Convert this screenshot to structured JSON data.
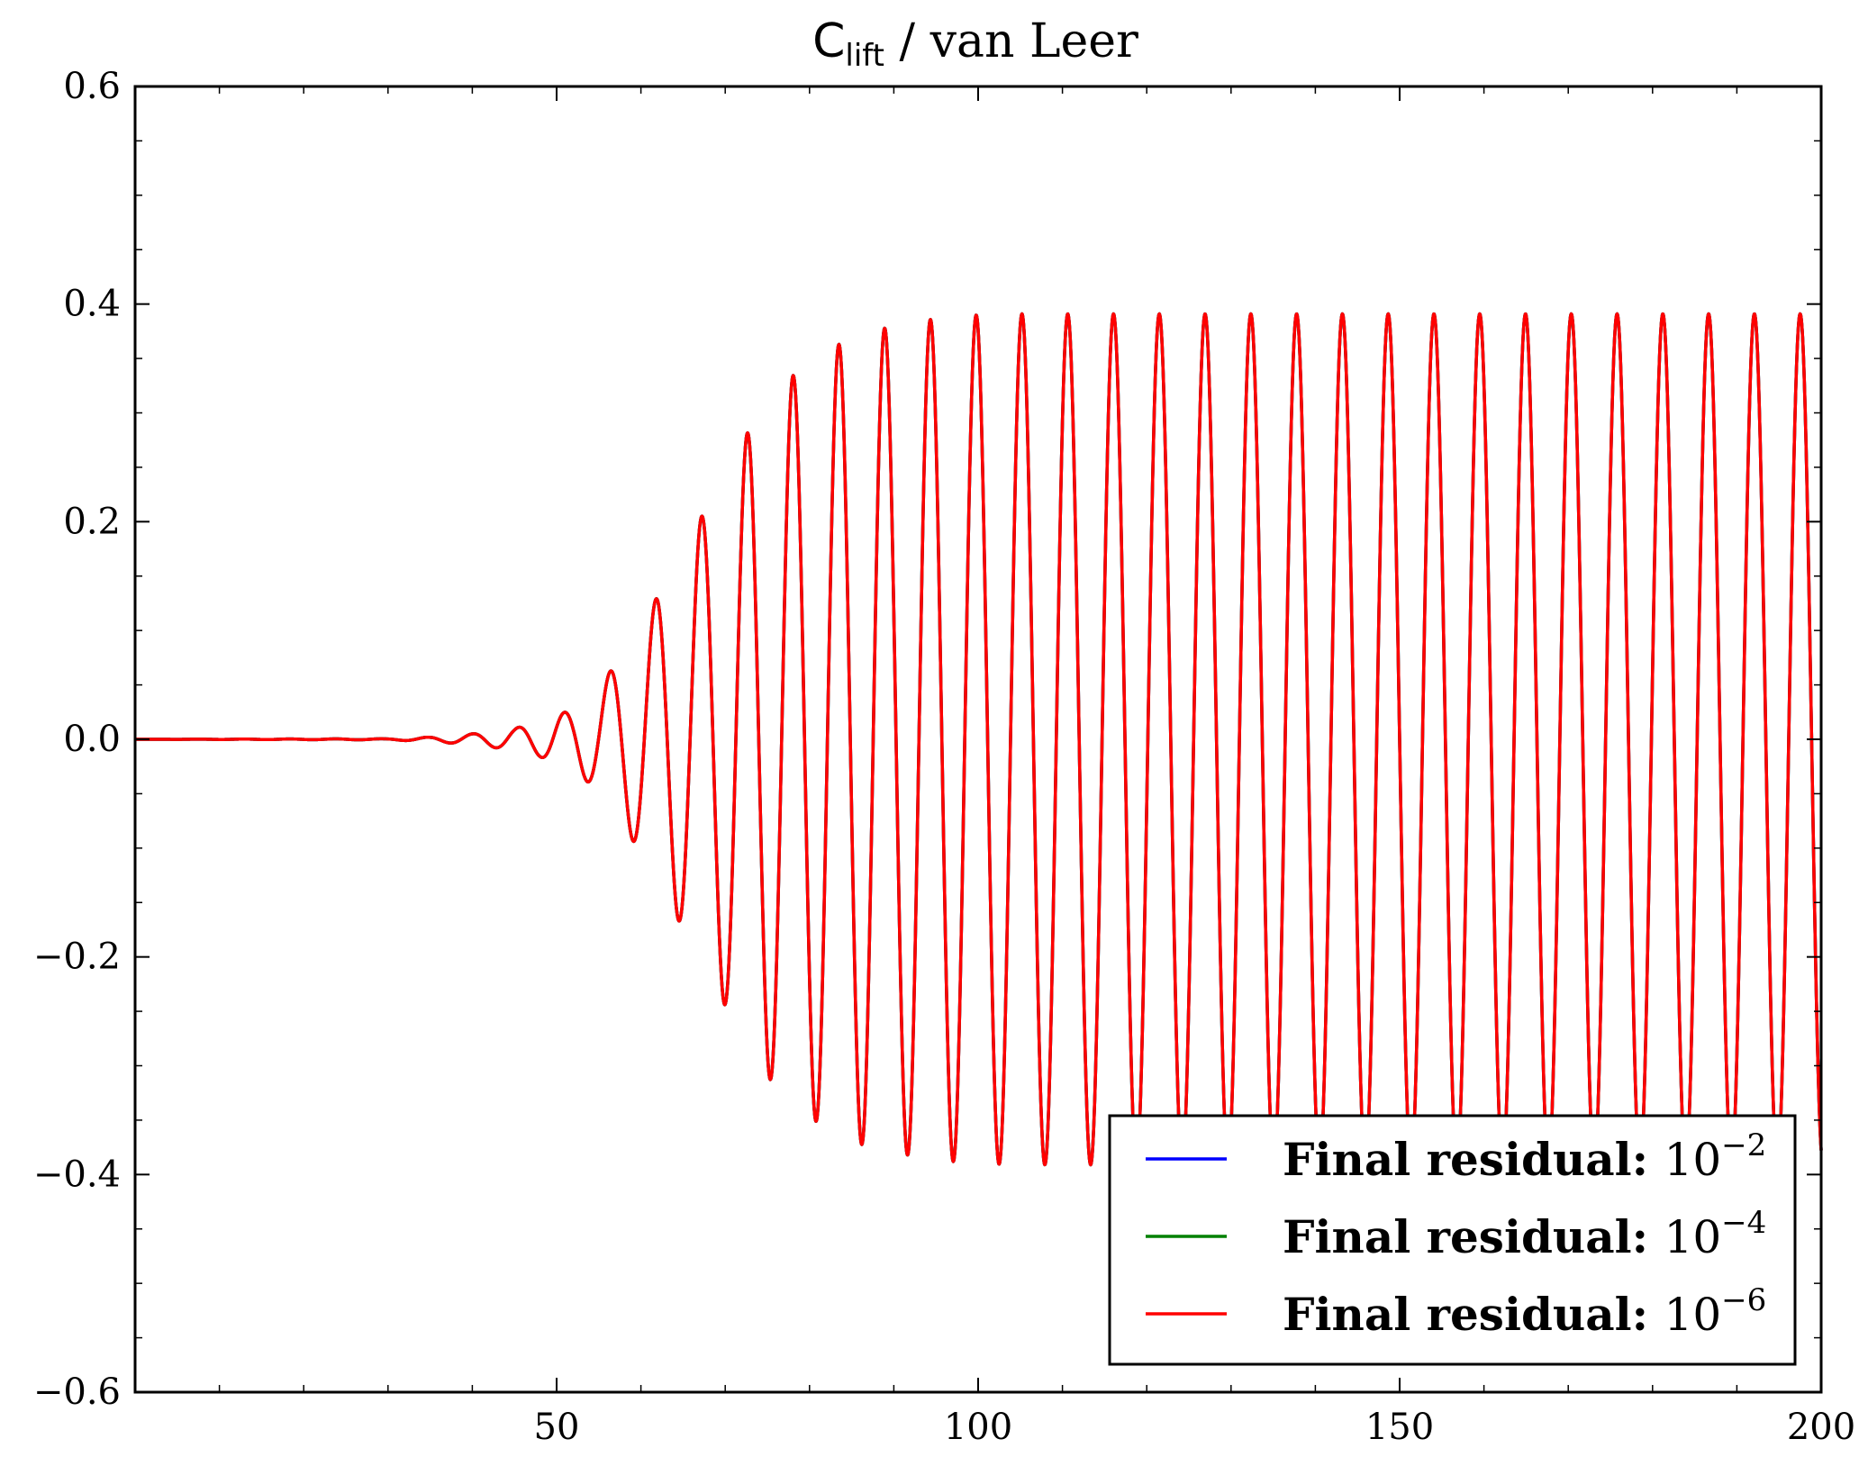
{
  "chart_data": {
    "type": "line",
    "title": {
      "main": "C",
      "subscript": "lift",
      "rest": " / van Leer"
    },
    "xlabel": "",
    "ylabel": "",
    "xlim": [
      0,
      200
    ],
    "ylim": [
      -0.6,
      0.6
    ],
    "xticks": [
      50,
      100,
      150,
      200
    ],
    "xtick_labels": [
      "50",
      "100",
      "150",
      "200"
    ],
    "yticks": [
      -0.6,
      -0.4,
      -0.2,
      0.0,
      0.2,
      0.4,
      0.6
    ],
    "ytick_labels": [
      "−0.6",
      "−0.4",
      "−0.2",
      "0.0",
      "0.2",
      "0.4",
      "0.6"
    ],
    "grid": false,
    "legend_position": "lower-right",
    "series": [
      {
        "name": "Final residual: 10^-2",
        "label_text": "Final residual: ",
        "label_base": "10",
        "label_exp": "−2",
        "color": "#0000ff"
      },
      {
        "name": "Final residual: 10^-4",
        "label_text": "Final residual: ",
        "label_base": "10",
        "label_exp": "−4",
        "color": "#008000"
      },
      {
        "name": "Final residual: 10^-6",
        "label_text": "Final residual: ",
        "label_base": "10",
        "label_exp": "−6",
        "color": "#ff0000"
      }
    ],
    "signal": {
      "period": 5.43,
      "first_peak_x": 105.2,
      "amplitude_envelope": [
        [
          0,
          0.0
        ],
        [
          30,
          0.0005
        ],
        [
          35,
          0.002
        ],
        [
          40,
          0.005
        ],
        [
          45,
          0.01
        ],
        [
          48,
          0.016
        ],
        [
          52,
          0.028
        ],
        [
          55,
          0.048
        ],
        [
          58,
          0.08
        ],
        [
          61,
          0.118
        ],
        [
          64,
          0.16
        ],
        [
          67,
          0.202
        ],
        [
          70,
          0.245
        ],
        [
          72.5,
          0.28
        ],
        [
          75,
          0.31
        ],
        [
          78,
          0.334
        ],
        [
          80.5,
          0.35
        ],
        [
          83.5,
          0.363
        ],
        [
          86,
          0.372
        ],
        [
          89,
          0.378
        ],
        [
          91.5,
          0.382
        ],
        [
          94.5,
          0.386
        ],
        [
          97,
          0.388
        ],
        [
          100,
          0.39
        ],
        [
          105,
          0.391
        ],
        [
          200,
          0.391
        ]
      ]
    }
  }
}
